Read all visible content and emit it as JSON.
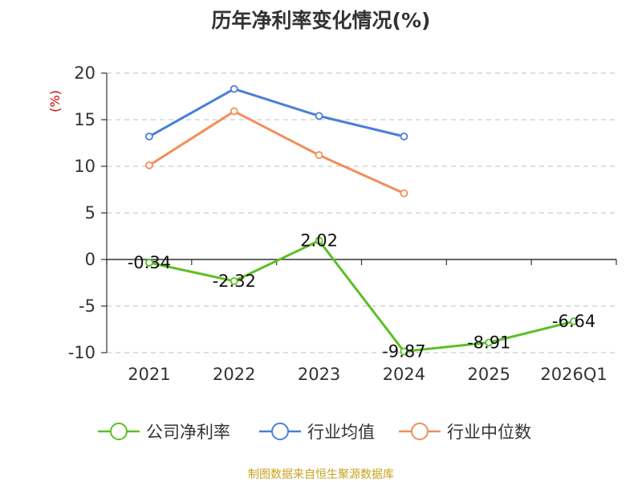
{
  "title": "历年净利率变化情况(%)",
  "source": "制图数据来自恒生聚源数据库",
  "colors": {
    "company": "#5cbf26",
    "industry_avg": "#4a7fd9",
    "industry_median": "#f28e5c",
    "grid": "#cccccc",
    "axis": "#333333",
    "unit": "#d40000"
  },
  "chart_data": {
    "type": "line",
    "title": "历年净利率变化情况(%)",
    "ylabel": "(%)",
    "xlabel": "",
    "categories": [
      "2021",
      "2022",
      "2023",
      "2024",
      "2025",
      "2026Q1"
    ],
    "ylim": [
      -10,
      20
    ],
    "yticks": [
      20,
      15,
      10,
      5,
      0,
      -5,
      -10
    ],
    "grid": true,
    "legend_position": "bottom",
    "series": [
      {
        "name": "公司净利率",
        "color": "#5cbf26",
        "values": [
          -0.34,
          -2.32,
          2.02,
          -9.87,
          -8.91,
          -6.64
        ],
        "labels": [
          "-0.34",
          "-2.32",
          "2.02",
          "-9.87",
          "-8.91",
          "-6.64"
        ]
      },
      {
        "name": "行业均值",
        "color": "#4a7fd9",
        "values": [
          13.2,
          18.3,
          15.4,
          13.2,
          null,
          null
        ]
      },
      {
        "name": "行业中位数",
        "color": "#f28e5c",
        "values": [
          10.1,
          15.9,
          11.2,
          7.1,
          null,
          null
        ]
      }
    ]
  }
}
